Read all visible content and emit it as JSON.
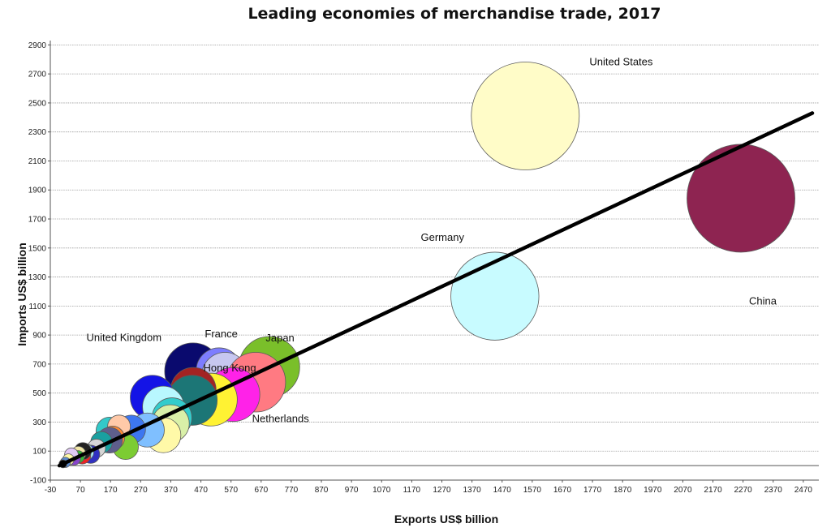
{
  "chart_data": {
    "type": "scatter",
    "title": "Leading economies of merchandise trade, 2017",
    "xlabel": "Exports US$ billion",
    "ylabel": "Imports  US$ billion",
    "xlim": [
      -30,
      2500
    ],
    "ylim": [
      -100,
      2930
    ],
    "xticks": [
      -30,
      70,
      170,
      270,
      370,
      470,
      570,
      670,
      770,
      870,
      970,
      1070,
      1170,
      1270,
      1370,
      1470,
      1570,
      1670,
      1770,
      1870,
      1970,
      2070,
      2170,
      2270,
      2370,
      2470
    ],
    "yticks": [
      -100,
      100,
      300,
      500,
      700,
      900,
      1100,
      1300,
      1500,
      1700,
      1900,
      2100,
      2300,
      2500,
      2700,
      2900
    ],
    "grid": "horizontal",
    "trendline": {
      "x": [
        0,
        2500
      ],
      "y": [
        0,
        2430
      ],
      "color": "#000000"
    },
    "bubbles": [
      {
        "x": 1547,
        "y": 2410,
        "r": 190,
        "color": "#FFFCC8"
      },
      {
        "x": 2263,
        "y": 1843,
        "r": 190,
        "color": "#8E2451"
      },
      {
        "x": 1446,
        "y": 1168,
        "r": 155,
        "color": "#C8FBFF"
      },
      {
        "x": 697,
        "y": 680,
        "r": 107,
        "color": "#7ABF2A"
      },
      {
        "x": 444,
        "y": 650,
        "r": 100,
        "color": "#0A0A6E"
      },
      {
        "x": 530,
        "y": 655,
        "r": 80,
        "color": "#7D7DFF"
      },
      {
        "x": 550,
        "y": 620,
        "r": 82,
        "color": "#C7C7F0"
      },
      {
        "x": 652,
        "y": 575,
        "r": 105,
        "color": "#FF7A82"
      },
      {
        "x": 576,
        "y": 490,
        "r": 95,
        "color": "#FF22E8"
      },
      {
        "x": 503,
        "y": 455,
        "r": 93,
        "color": "#FFF233"
      },
      {
        "x": 445,
        "y": 520,
        "r": 80,
        "color": "#A32323"
      },
      {
        "x": 441,
        "y": 450,
        "r": 88,
        "color": "#1C7676"
      },
      {
        "x": 309,
        "y": 470,
        "r": 78,
        "color": "#1414E6"
      },
      {
        "x": 345,
        "y": 405,
        "r": 73,
        "color": "#B8F7FF"
      },
      {
        "x": 374,
        "y": 330,
        "r": 70,
        "color": "#33CCCC"
      },
      {
        "x": 369,
        "y": 290,
        "r": 66,
        "color": "#D9F0A8"
      },
      {
        "x": 345,
        "y": 210,
        "r": 62,
        "color": "#FFF9A8"
      },
      {
        "x": 292,
        "y": 245,
        "r": 60,
        "color": "#7FBFFF"
      },
      {
        "x": 239,
        "y": 250,
        "r": 50,
        "color": "#3D77F0"
      },
      {
        "x": 220,
        "y": 130,
        "r": 45,
        "color": "#7CCC33"
      },
      {
        "x": 167,
        "y": 240,
        "r": 48,
        "color": "#33C9C9"
      },
      {
        "x": 198,
        "y": 270,
        "r": 40,
        "color": "#FFC9A8"
      },
      {
        "x": 177,
        "y": 190,
        "r": 42,
        "color": "#FF8833"
      },
      {
        "x": 167,
        "y": 175,
        "r": 45,
        "color": "#5E5E8C"
      },
      {
        "x": 140,
        "y": 160,
        "r": 38,
        "color": "#1AA0A0"
      },
      {
        "x": 123,
        "y": 120,
        "r": 32,
        "color": "#D6D6D6"
      },
      {
        "x": 104,
        "y": 78,
        "r": 32,
        "color": "#3030C0"
      },
      {
        "x": 86,
        "y": 93,
        "r": 30,
        "color": "#AAF0FF"
      },
      {
        "x": 76,
        "y": 70,
        "r": 30,
        "color": "#EE2222"
      },
      {
        "x": 78,
        "y": 100,
        "r": 30,
        "color": "#222222"
      },
      {
        "x": 63,
        "y": 82,
        "r": 26,
        "color": "#F2E7A8"
      },
      {
        "x": 62,
        "y": 60,
        "r": 22,
        "color": "#33BB33"
      },
      {
        "x": 48,
        "y": 50,
        "r": 24,
        "color": "#8844CC"
      },
      {
        "x": 40,
        "y": 75,
        "r": 24,
        "color": "#E0C8F5"
      },
      {
        "x": 30,
        "y": 42,
        "r": 20,
        "color": "#FFF9A8"
      },
      {
        "x": 20,
        "y": 22,
        "r": 18,
        "color": "#5B8BD0"
      },
      {
        "x": 12,
        "y": 12,
        "r": 14,
        "color": "#000000"
      }
    ],
    "annotations": [
      {
        "text": "United States",
        "x": 1760,
        "y": 2760,
        "color": "#111111"
      },
      {
        "text": "China",
        "x": 2290,
        "y": 1110,
        "color": "#111111"
      },
      {
        "text": "Germany",
        "x": 1200,
        "y": 1550,
        "color": "#111111"
      },
      {
        "text": "United Kingdom",
        "x": 90,
        "y": 860,
        "color": "#111111"
      },
      {
        "text": "France",
        "x": 483,
        "y": 885,
        "color": "#111111"
      },
      {
        "text": "Japan",
        "x": 685,
        "y": 855,
        "color": "#111111"
      },
      {
        "text": "Hong Kong",
        "x": 478,
        "y": 650,
        "color": "#EEEEEE"
      },
      {
        "text": "Netherlands",
        "x": 640,
        "y": 300,
        "color": "#111111"
      }
    ]
  }
}
